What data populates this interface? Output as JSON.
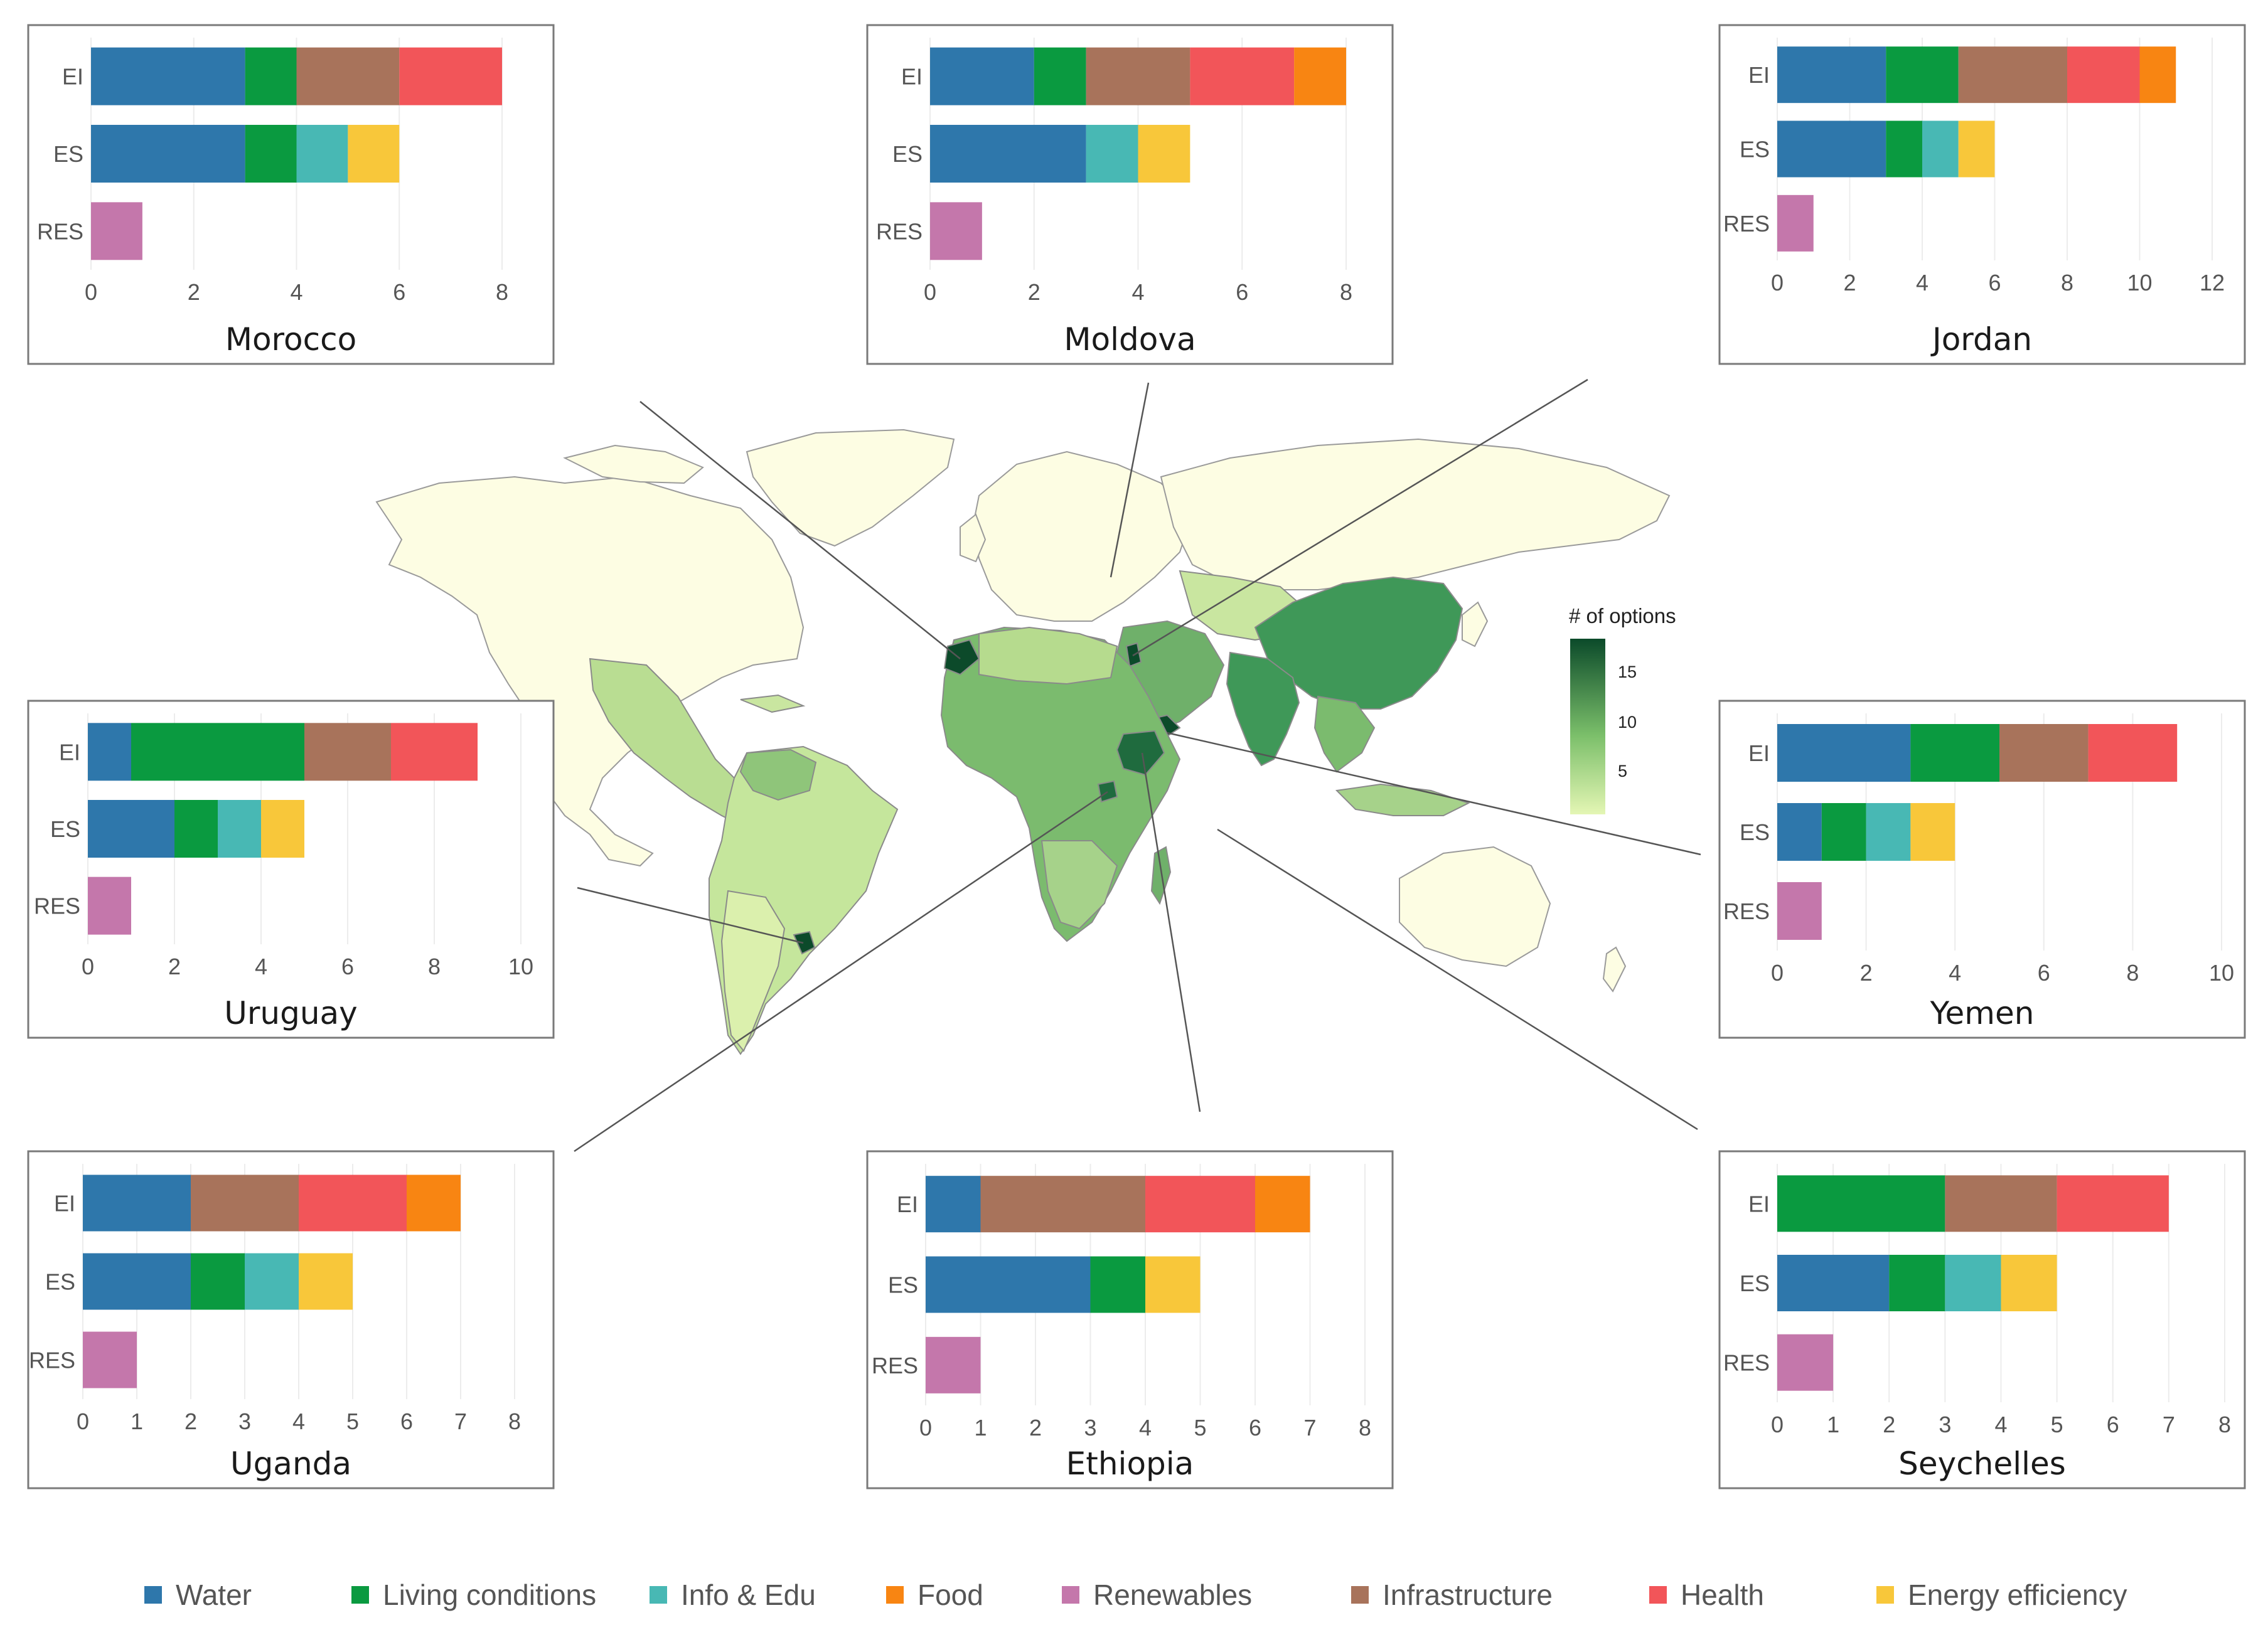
{
  "chart_data": {
    "type": "bar",
    "orientation": "horizontal",
    "stacked": true,
    "categories": [
      "EI",
      "ES",
      "RES"
    ],
    "series_colors": {
      "Water": "#2e77ab",
      "Living conditions": "#0a9a40",
      "Info & Edu": "#48b8b4",
      "Food": "#f88512",
      "Renewables": "#c477ab",
      "Infrastructure": "#a8735b",
      "Health": "#f25559",
      "Energy efficiency": "#f8c73a"
    },
    "legend": {
      "placement": "bottom",
      "items": [
        "Water",
        "Living conditions",
        "Info & Edu",
        "Food",
        "Renewables",
        "Infrastructure",
        "Health",
        "Energy efficiency"
      ]
    },
    "panels": [
      {
        "title": "Morocco",
        "xlim": [
          0,
          8
        ],
        "ticks": [
          "0",
          "2",
          "4",
          "6",
          "8"
        ],
        "bars": {
          "EI": [
            [
              "Water",
              3
            ],
            [
              "Living conditions",
              1
            ],
            [
              "Infrastructure",
              2
            ],
            [
              "Health",
              2
            ]
          ],
          "ES": [
            [
              "Water",
              3
            ],
            [
              "Living conditions",
              1
            ],
            [
              "Info & Edu",
              1
            ],
            [
              "Energy efficiency",
              1
            ]
          ],
          "RES": [
            [
              "Renewables",
              1
            ]
          ]
        }
      },
      {
        "title": "Moldova",
        "xlim": [
          0,
          8
        ],
        "ticks": [
          "0",
          "2",
          "4",
          "6",
          "8"
        ],
        "bars": {
          "EI": [
            [
              "Water",
              2
            ],
            [
              "Living conditions",
              1
            ],
            [
              "Infrastructure",
              2
            ],
            [
              "Health",
              2
            ],
            [
              "Food",
              1
            ]
          ],
          "ES": [
            [
              "Water",
              3
            ],
            [
              "Info & Edu",
              1
            ],
            [
              "Energy efficiency",
              1
            ]
          ],
          "RES": [
            [
              "Renewables",
              1
            ]
          ]
        }
      },
      {
        "title": "Jordan",
        "xlim": [
          0,
          12
        ],
        "ticks": [
          "0",
          "2",
          "4",
          "6",
          "8",
          "10",
          "12"
        ],
        "bars": {
          "EI": [
            [
              "Water",
              3
            ],
            [
              "Living conditions",
              2
            ],
            [
              "Infrastructure",
              3
            ],
            [
              "Health",
              2
            ],
            [
              "Food",
              1
            ]
          ],
          "ES": [
            [
              "Water",
              3
            ],
            [
              "Living conditions",
              1
            ],
            [
              "Info & Edu",
              1
            ],
            [
              "Energy efficiency",
              1
            ]
          ],
          "RES": [
            [
              "Renewables",
              1
            ]
          ]
        }
      },
      {
        "title": "Uruguay",
        "xlim": [
          0,
          10
        ],
        "ticks": [
          "0",
          "2",
          "4",
          "6",
          "8",
          "10"
        ],
        "bars": {
          "EI": [
            [
              "Water",
              1
            ],
            [
              "Living conditions",
              4
            ],
            [
              "Infrastructure",
              2
            ],
            [
              "Health",
              2
            ]
          ],
          "ES": [
            [
              "Water",
              2
            ],
            [
              "Living conditions",
              1
            ],
            [
              "Info & Edu",
              1
            ],
            [
              "Energy efficiency",
              1
            ]
          ],
          "RES": [
            [
              "Renewables",
              1
            ]
          ]
        }
      },
      {
        "title": "Yemen",
        "xlim": [
          0,
          10
        ],
        "ticks": [
          "0",
          "2",
          "4",
          "6",
          "8",
          "10"
        ],
        "bars": {
          "EI": [
            [
              "Water",
              3
            ],
            [
              "Living conditions",
              2
            ],
            [
              "Infrastructure",
              2
            ],
            [
              "Health",
              2
            ]
          ],
          "ES": [
            [
              "Water",
              1
            ],
            [
              "Living conditions",
              1
            ],
            [
              "Info & Edu",
              1
            ],
            [
              "Energy efficiency",
              1
            ]
          ],
          "RES": [
            [
              "Renewables",
              1
            ]
          ]
        }
      },
      {
        "title": "Uganda",
        "xlim": [
          0,
          8
        ],
        "ticks": [
          "0",
          "1",
          "2",
          "3",
          "4",
          "5",
          "6",
          "7",
          "8"
        ],
        "bars": {
          "EI": [
            [
              "Water",
              2
            ],
            [
              "Infrastructure",
              2
            ],
            [
              "Health",
              2
            ],
            [
              "Food",
              1
            ]
          ],
          "ES": [
            [
              "Water",
              2
            ],
            [
              "Living conditions",
              1
            ],
            [
              "Info & Edu",
              1
            ],
            [
              "Energy efficiency",
              1
            ]
          ],
          "RES": [
            [
              "Renewables",
              1
            ]
          ]
        }
      },
      {
        "title": "Ethiopia",
        "xlim": [
          0,
          8
        ],
        "ticks": [
          "0",
          "1",
          "2",
          "3",
          "4",
          "5",
          "6",
          "7",
          "8"
        ],
        "bars": {
          "EI": [
            [
              "Water",
              1
            ],
            [
              "Infrastructure",
              3
            ],
            [
              "Health",
              2
            ],
            [
              "Food",
              1
            ]
          ],
          "ES": [
            [
              "Water",
              3
            ],
            [
              "Living conditions",
              1
            ],
            [
              "Energy efficiency",
              1
            ]
          ],
          "RES": [
            [
              "Renewables",
              1
            ]
          ]
        }
      },
      {
        "title": "Seychelles",
        "xlim": [
          0,
          8
        ],
        "ticks": [
          "0",
          "1",
          "2",
          "3",
          "4",
          "5",
          "6",
          "7",
          "8"
        ],
        "bars": {
          "EI": [
            [
              "Living conditions",
              3
            ],
            [
              "Infrastructure",
              2
            ],
            [
              "Health",
              2
            ]
          ],
          "ES": [
            [
              "Water",
              2
            ],
            [
              "Living conditions",
              1
            ],
            [
              "Info & Edu",
              1
            ],
            [
              "Energy efficiency",
              1
            ]
          ],
          "RES": [
            [
              "Renewables",
              1
            ]
          ]
        }
      }
    ],
    "map": {
      "type": "choropleth",
      "colorbar": {
        "title": "# of options",
        "ticks": [
          "15",
          "10",
          "5"
        ],
        "range": [
          1,
          18
        ],
        "color_low": "#e4f6b4",
        "color_high": "#0b4a2a"
      },
      "no_data_color": "#fdfde3"
    }
  }
}
